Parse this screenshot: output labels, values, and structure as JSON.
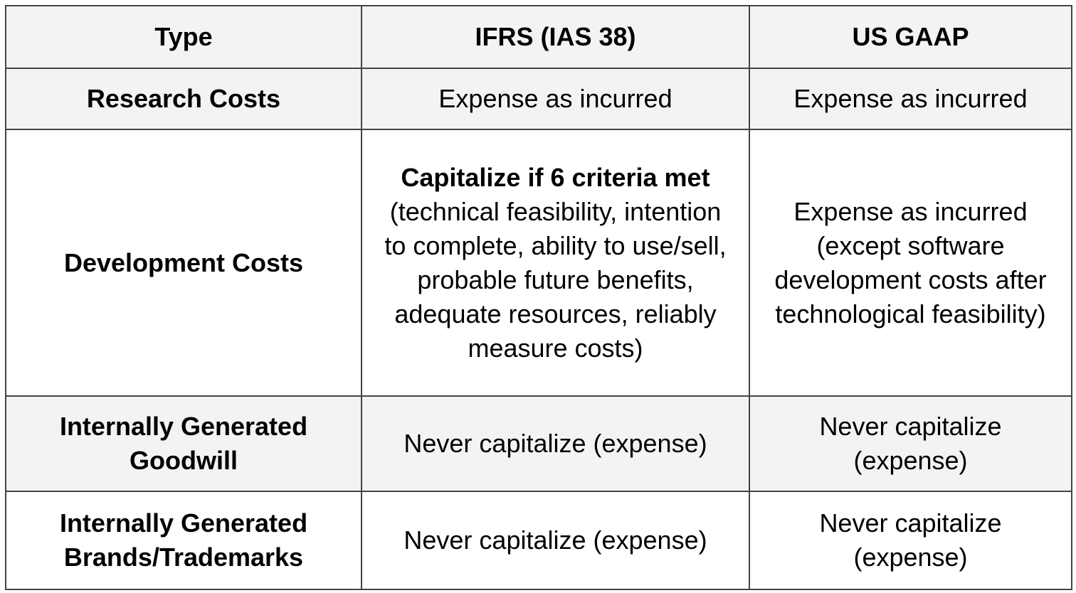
{
  "table": {
    "header": [
      "Type",
      "IFRS (IAS 38)",
      "US GAAP"
    ],
    "rows": [
      [
        "Research Costs",
        "Expense as incurred",
        "Expense as incurred"
      ],
      [
        "Development Costs",
        {
          "bold": "Capitalize if 6 criteria met",
          "text": "(technical feasibility, intention to complete, ability to use/sell, probable future benefits, adequate resources, reliably measure costs)"
        },
        "Expense as incurred (except software development costs after technological feasibility)"
      ],
      [
        "Internally Generated Goodwill",
        "Never capitalize (expense)",
        "Never capitalize (expense)"
      ],
      [
        "Internally Generated Brands/Trademarks",
        "Never capitalize (expense)",
        "Never capitalize (expense)"
      ]
    ]
  }
}
